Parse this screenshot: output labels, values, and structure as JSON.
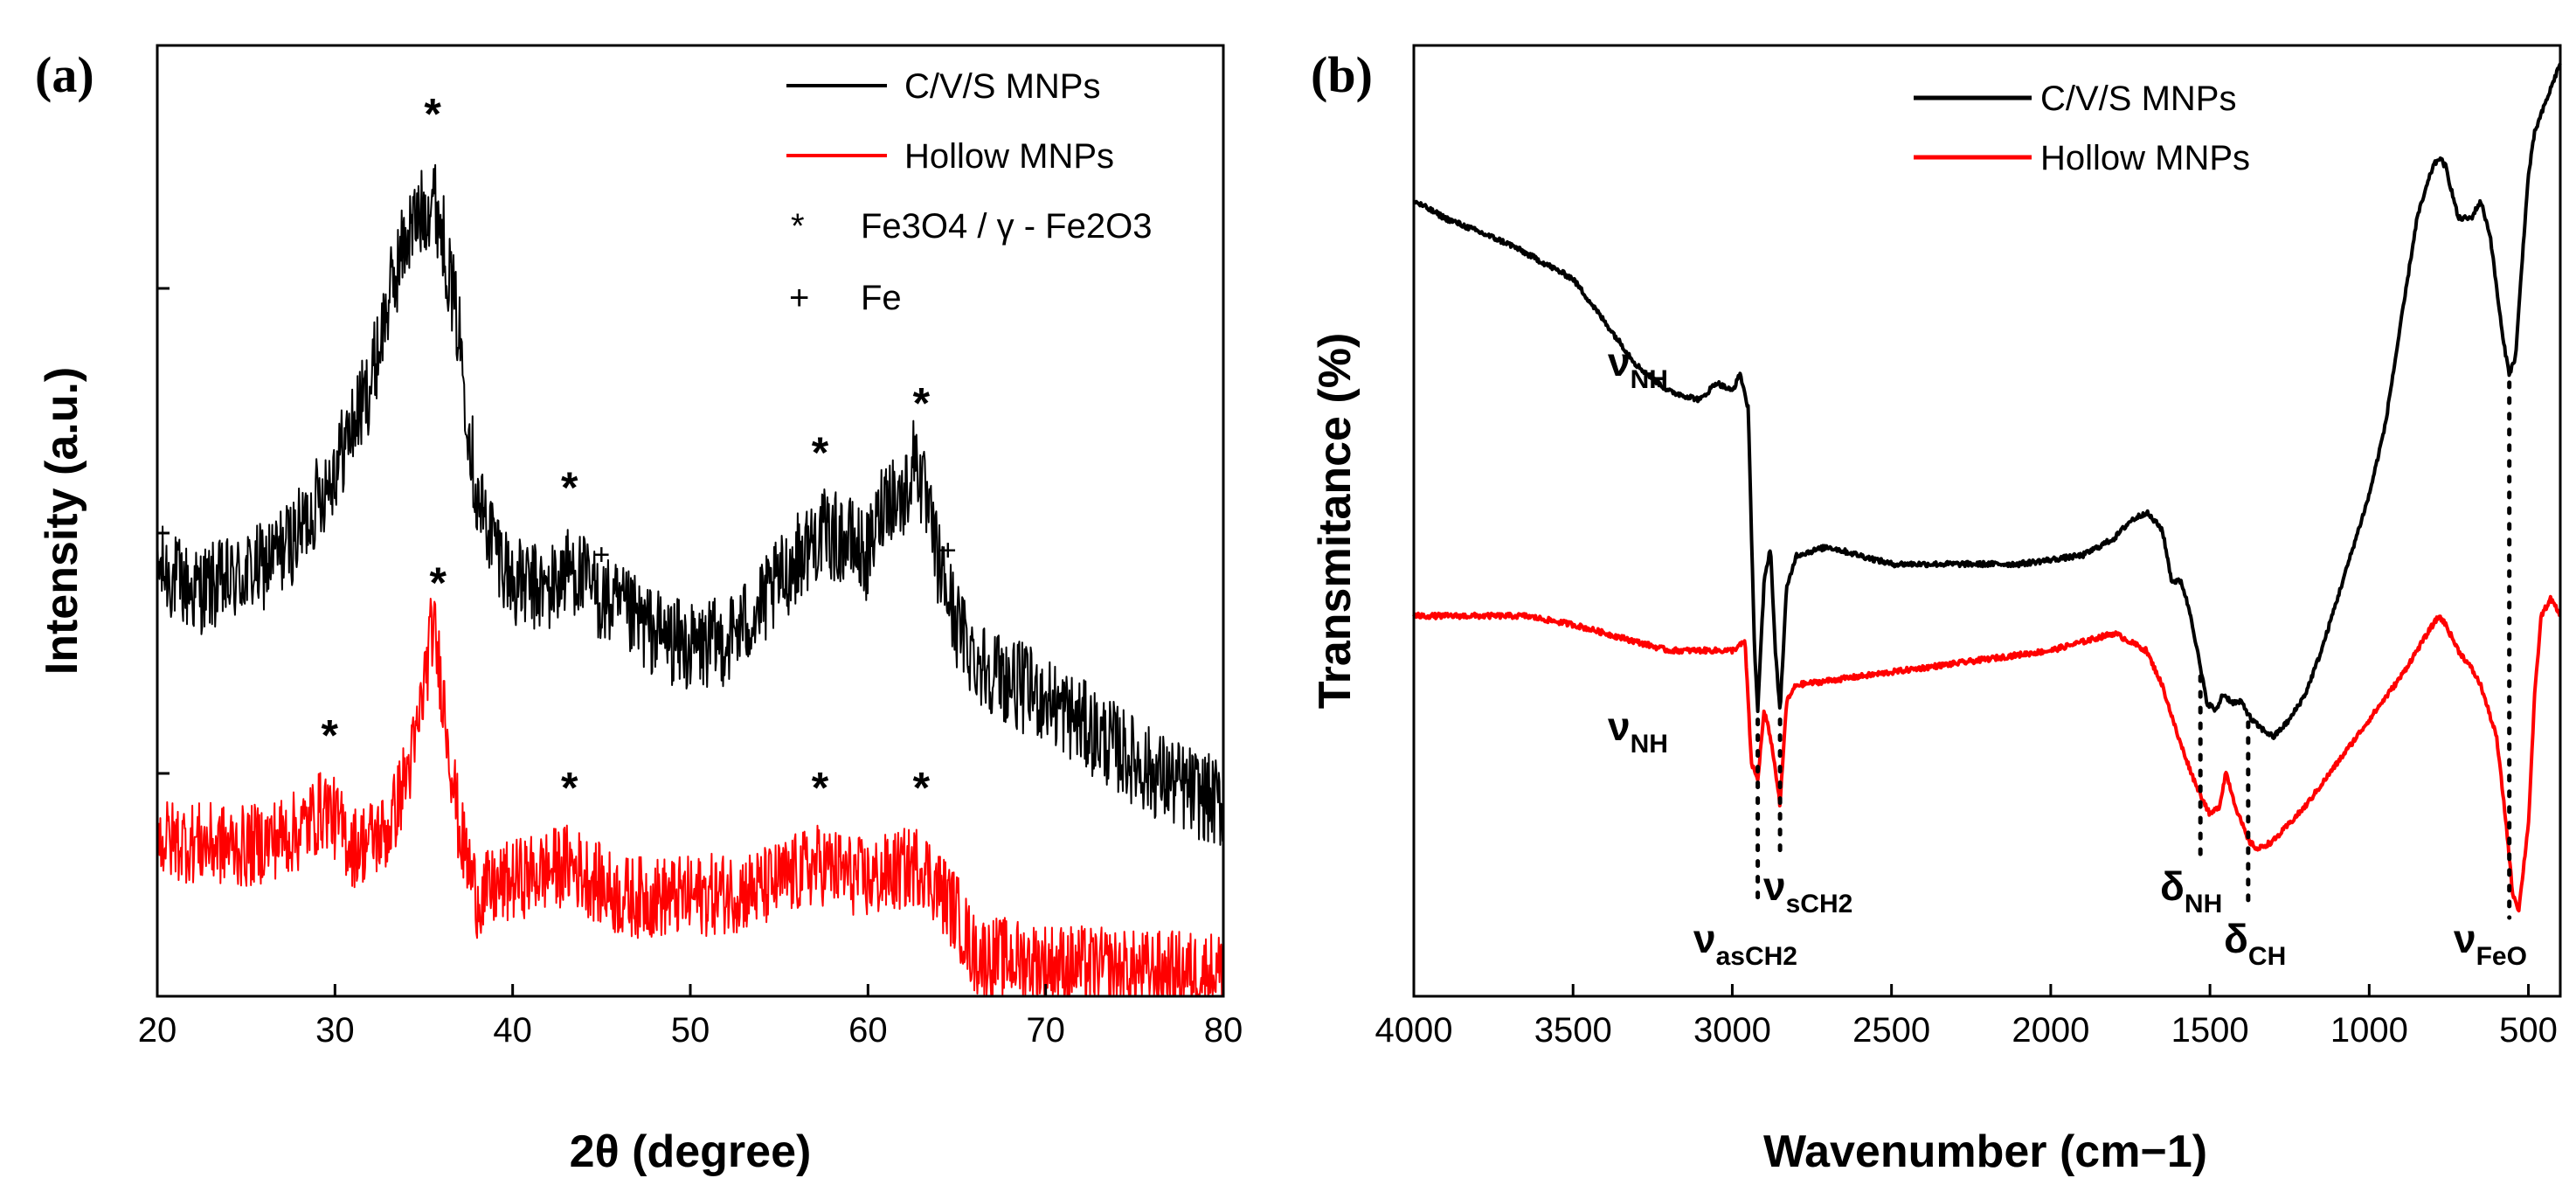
{
  "chart_data": [
    {
      "type": "line",
      "panel_label": "(a)",
      "xlabel": "2θ (degree)",
      "ylabel": "Intensity (a.u.)",
      "xlim": [
        20,
        80
      ],
      "xticks": [
        "20",
        "30",
        "40",
        "50",
        "60",
        "70",
        "80"
      ],
      "series": [
        {
          "name": "C/V/S MNPs",
          "color": "#000000",
          "x": [
            20,
            22,
            24,
            26,
            28,
            30,
            32,
            33,
            34,
            35,
            35.5,
            36,
            37,
            38,
            40,
            42,
            43.3,
            45,
            48,
            50,
            52,
            54,
            56,
            57.3,
            59,
            60,
            61,
            62,
            62.7,
            63,
            64,
            65,
            66,
            68,
            70,
            72,
            74,
            76,
            78,
            80
          ],
          "values": [
            0.52,
            0.49,
            0.5,
            0.52,
            0.56,
            0.64,
            0.74,
            0.84,
            0.92,
            0.95,
            0.97,
            0.93,
            0.8,
            0.6,
            0.5,
            0.49,
            0.52,
            0.48,
            0.44,
            0.42,
            0.43,
            0.47,
            0.53,
            0.56,
            0.55,
            0.53,
            0.61,
            0.6,
            0.66,
            0.62,
            0.52,
            0.45,
            0.41,
            0.38,
            0.36,
            0.33,
            0.3,
            0.27,
            0.25,
            0.23
          ]
        },
        {
          "name": "Hollow MNPs",
          "color": "#ff0000",
          "x": [
            20,
            25,
            28,
            29.5,
            31,
            33,
            34.5,
            35.5,
            36,
            37,
            38,
            40,
            43.2,
            46,
            50,
            54,
            57.3,
            60,
            63,
            65,
            66,
            70,
            75,
            80
          ],
          "values": [
            0.19,
            0.18,
            0.2,
            0.23,
            0.18,
            0.2,
            0.3,
            0.45,
            0.38,
            0.2,
            0.12,
            0.14,
            0.16,
            0.12,
            0.12,
            0.13,
            0.16,
            0.14,
            0.16,
            0.1,
            0.05,
            0.04,
            0.03,
            0.03
          ]
        }
      ],
      "legend": [
        "C/V/S MNPs",
        "Hollow MNPs",
        "Fe3O4 / γ - Fe2O3",
        "Fe"
      ],
      "legend_markers": [
        "*",
        "+"
      ],
      "annotations": {
        "star": "*",
        "plus": "+",
        "star_x_black": [
          35.5,
          43.2,
          57.3,
          63
        ],
        "star_x_red": [
          29.7,
          35.8,
          43.2,
          57.3,
          63
        ],
        "plus_x": [
          45,
          64.5
        ]
      }
    },
    {
      "type": "line",
      "panel_label": "(b)",
      "xlabel": "Wavenumber (cm−1)",
      "ylabel": "Transmitance (%)",
      "xlim": [
        4000,
        400
      ],
      "xticks": [
        "4000",
        "3500",
        "3000",
        "2500",
        "2000",
        "1500",
        "1000",
        "500"
      ],
      "series": [
        {
          "name": "C/V/S MNPs",
          "color": "#000000",
          "x": [
            4000,
            3900,
            3700,
            3500,
            3400,
            3300,
            3200,
            3100,
            3050,
            3000,
            2975,
            2950,
            2930,
            2920,
            2900,
            2880,
            2865,
            2850,
            2830,
            2800,
            2700,
            2600,
            2500,
            2300,
            2100,
            1900,
            1800,
            1750,
            1700,
            1650,
            1620,
            1590,
            1560,
            1530,
            1510,
            1480,
            1460,
            1430,
            1400,
            1370,
            1340,
            1300,
            1250,
            1200,
            1150,
            1100,
            1000,
            950,
            900,
            850,
            800,
            780,
            760,
            720,
            680,
            650,
            620,
            600,
            580,
            560,
            540,
            520,
            500,
            480,
            460,
            440,
            420,
            400
          ],
          "values": [
            0.92,
            0.9,
            0.87,
            0.83,
            0.78,
            0.73,
            0.7,
            0.69,
            0.71,
            0.7,
            0.72,
            0.68,
            0.4,
            0.33,
            0.48,
            0.52,
            0.4,
            0.33,
            0.47,
            0.51,
            0.52,
            0.51,
            0.5,
            0.5,
            0.5,
            0.51,
            0.53,
            0.55,
            0.56,
            0.54,
            0.48,
            0.48,
            0.44,
            0.38,
            0.34,
            0.33,
            0.35,
            0.34,
            0.34,
            0.32,
            0.31,
            0.3,
            0.32,
            0.35,
            0.4,
            0.46,
            0.58,
            0.66,
            0.78,
            0.9,
            0.96,
            0.97,
            0.96,
            0.9,
            0.9,
            0.92,
            0.88,
            0.82,
            0.76,
            0.72,
            0.74,
            0.85,
            0.95,
            1.0,
            1.02,
            1.04,
            1.06,
            1.08
          ]
        },
        {
          "name": "Hollow MNPs",
          "color": "#ff0000",
          "x": [
            4000,
            3800,
            3650,
            3500,
            3300,
            3200,
            3100,
            3000,
            2960,
            2940,
            2920,
            2900,
            2880,
            2860,
            2850,
            2830,
            2800,
            2600,
            2400,
            2200,
            2000,
            1900,
            1800,
            1700,
            1650,
            1600,
            1550,
            1500,
            1470,
            1450,
            1420,
            1380,
            1350,
            1300,
            1200,
            1100,
            1000,
            900,
            850,
            800,
            780,
            760,
            720,
            680,
            650,
            600,
            570,
            550,
            530,
            500,
            480,
            460,
            430,
            400
          ],
          "values": [
            0.44,
            0.44,
            0.44,
            0.43,
            0.41,
            0.4,
            0.4,
            0.4,
            0.41,
            0.27,
            0.25,
            0.33,
            0.3,
            0.25,
            0.22,
            0.34,
            0.36,
            0.37,
            0.38,
            0.39,
            0.4,
            0.41,
            0.42,
            0.4,
            0.36,
            0.3,
            0.25,
            0.21,
            0.22,
            0.26,
            0.22,
            0.18,
            0.17,
            0.18,
            0.22,
            0.27,
            0.32,
            0.37,
            0.4,
            0.43,
            0.44,
            0.43,
            0.4,
            0.38,
            0.36,
            0.3,
            0.2,
            0.12,
            0.1,
            0.2,
            0.35,
            0.44,
            0.46,
            0.44
          ]
        }
      ],
      "legend": [
        "C/V/S MNPs",
        "Hollow MNPs"
      ],
      "bands": [
        {
          "symbol": "ν",
          "sub": "NH",
          "wavenumber": 3050
        },
        {
          "symbol": "ν",
          "sub": "NH",
          "wavenumber": 3050
        },
        {
          "symbol": "ν",
          "sub": "asCH2",
          "wavenumber": 2920
        },
        {
          "symbol": "ν",
          "sub": "sCH2",
          "wavenumber": 2850
        },
        {
          "symbol": "δ",
          "sub": "NH",
          "wavenumber": 1530
        },
        {
          "symbol": "δ",
          "sub": "CH",
          "wavenumber": 1380
        },
        {
          "symbol": "ν",
          "sub": "FeO",
          "wavenumber": 560
        }
      ]
    }
  ]
}
